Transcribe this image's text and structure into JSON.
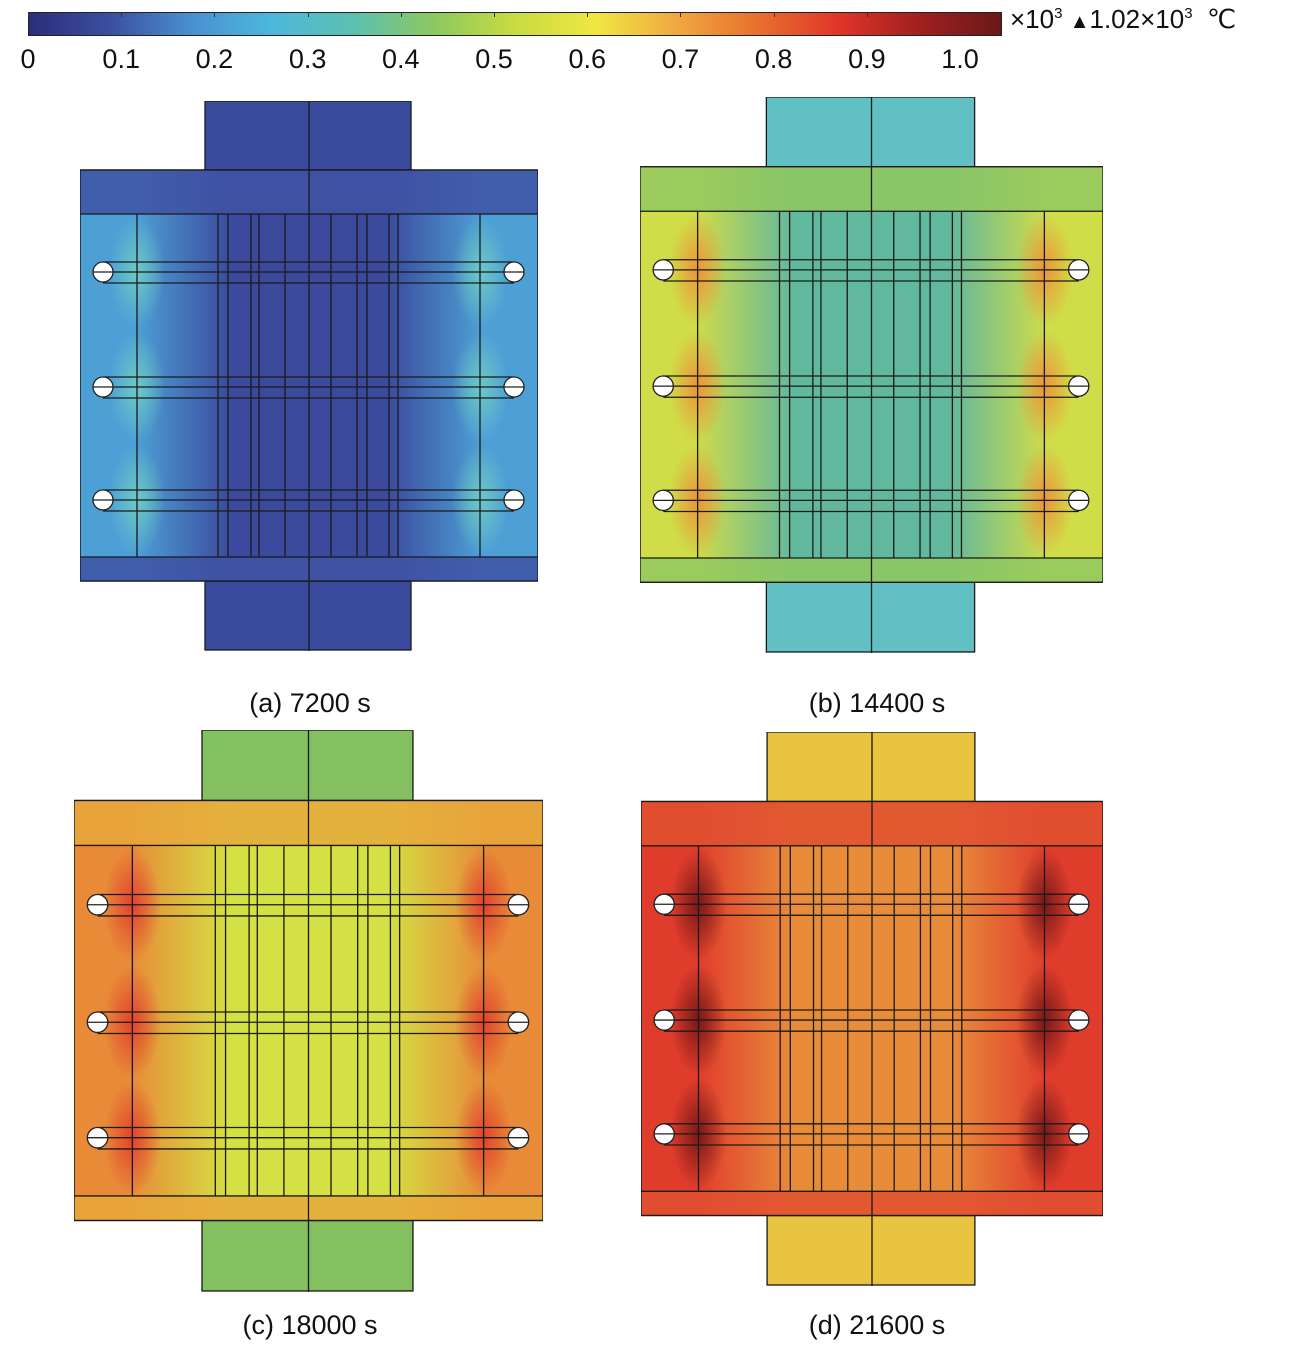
{
  "colorbar": {
    "ticks": [
      "0",
      "0.1",
      "0.2",
      "0.3",
      "0.4",
      "0.5",
      "0.6",
      "0.7",
      "0.8",
      "0.9",
      "1.0"
    ],
    "tick_values": [
      0,
      0.1,
      0.2,
      0.3,
      0.4,
      0.5,
      0.6,
      0.7,
      0.8,
      0.9,
      1.0
    ],
    "range": [
      0,
      1.045
    ],
    "multiplier": "×10",
    "multiplier_exp": "3",
    "max_marker": "▲",
    "max_label": "1.02×10",
    "max_exp": "3",
    "unit": "℃",
    "colormap": [
      "#2b2d7c",
      "#3b4fa0",
      "#4a8fd0",
      "#4cb8dc",
      "#5cc0b0",
      "#8cc860",
      "#c8dc40",
      "#f0e642",
      "#f0a840",
      "#e8702e",
      "#e0352a",
      "#a02020",
      "#6a1818"
    ]
  },
  "panels": [
    {
      "caption": "(a) 7200 s",
      "tab": "#3a4a9c",
      "center": "#3b4a9c",
      "edge": "#4da0d6",
      "hot": "#70d0c0",
      "band": "#3f52a4"
    },
    {
      "caption": "(b) 14400 s",
      "tab": "#60c0c4",
      "center": "#62b89c",
      "edge": "#d0dc48",
      "hot": "#f08a38",
      "band": "#90c860"
    },
    {
      "caption": "(c) 18000 s",
      "tab": "#84c060",
      "center": "#d4e044",
      "edge": "#e88a38",
      "hot": "#e03a2c",
      "band": "#e8a83c"
    },
    {
      "caption": "(d) 21600 s",
      "tab": "#e8c440",
      "center": "#e88c3a",
      "edge": "#e03c2c",
      "hot": "#6a1414",
      "band": "#e05030"
    }
  ]
}
